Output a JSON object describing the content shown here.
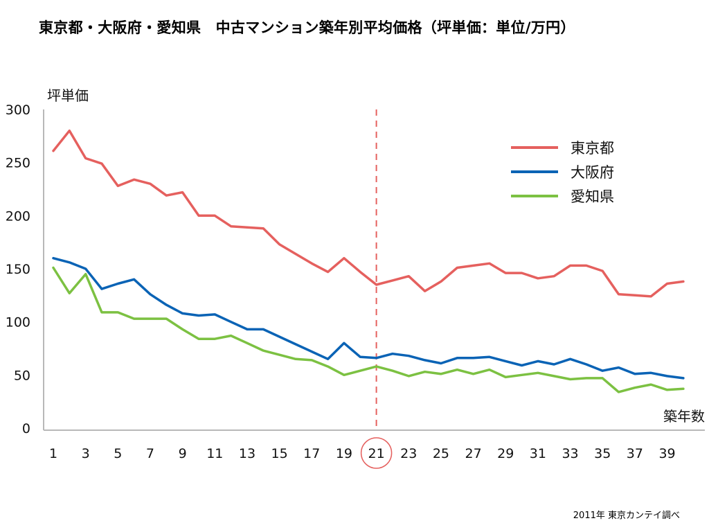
{
  "title": "東京都・大阪府・愛知県　中古マンション築年別平均価格（坪単価：単位/万円）",
  "source": "2011年 東京カンテイ調べ",
  "chart_data": {
    "type": "line",
    "title": "東京都・大阪府・愛知県　中古マンション築年別平均価格（坪単価：単位/万円）",
    "xlabel": "築年数",
    "ylabel": "坪単価",
    "x": [
      1,
      2,
      3,
      4,
      5,
      6,
      7,
      8,
      9,
      10,
      11,
      12,
      13,
      14,
      15,
      16,
      17,
      18,
      19,
      20,
      21,
      22,
      23,
      24,
      25,
      26,
      27,
      28,
      29,
      30,
      31,
      32,
      33,
      34,
      35,
      36,
      37,
      38,
      39,
      40
    ],
    "x_tick_labels": [
      "1",
      "3",
      "5",
      "7",
      "9",
      "11",
      "13",
      "15",
      "17",
      "19",
      "21",
      "23",
      "25",
      "27",
      "29",
      "31",
      "33",
      "35",
      "37",
      "39"
    ],
    "y_tick_labels": [
      "0",
      "50",
      "100",
      "150",
      "200",
      "250",
      "300"
    ],
    "ylim": [
      0,
      300
    ],
    "highlight_x": 21,
    "grid": false,
    "legend_position": "top-right",
    "series": [
      {
        "name": "東京都",
        "color": "#e5605e",
        "values": [
          261,
          280,
          254,
          249,
          228,
          234,
          230,
          219,
          222,
          200,
          200,
          190,
          189,
          188,
          173,
          164,
          155,
          147,
          160,
          147,
          135,
          139,
          143,
          129,
          138,
          151,
          153,
          155,
          146,
          146,
          141,
          143,
          153,
          153,
          148,
          126,
          125,
          124,
          136,
          138
        ]
      },
      {
        "name": "大阪府",
        "color": "#0a63b5",
        "values": [
          160,
          156,
          150,
          131,
          136,
          140,
          126,
          116,
          108,
          106,
          107,
          100,
          93,
          93,
          86,
          79,
          72,
          65,
          80,
          67,
          66,
          70,
          68,
          64,
          61,
          66,
          66,
          67,
          63,
          59,
          63,
          60,
          65,
          60,
          54,
          57,
          51,
          52,
          49,
          47
        ]
      },
      {
        "name": "愛知県",
        "color": "#7cc142",
        "values": [
          151,
          127,
          145,
          109,
          109,
          103,
          103,
          103,
          93,
          84,
          84,
          87,
          80,
          73,
          69,
          65,
          64,
          58,
          50,
          54,
          58,
          54,
          49,
          53,
          51,
          55,
          51,
          55,
          48,
          50,
          52,
          49,
          46,
          47,
          47,
          34,
          38,
          41,
          36,
          37
        ]
      }
    ]
  }
}
